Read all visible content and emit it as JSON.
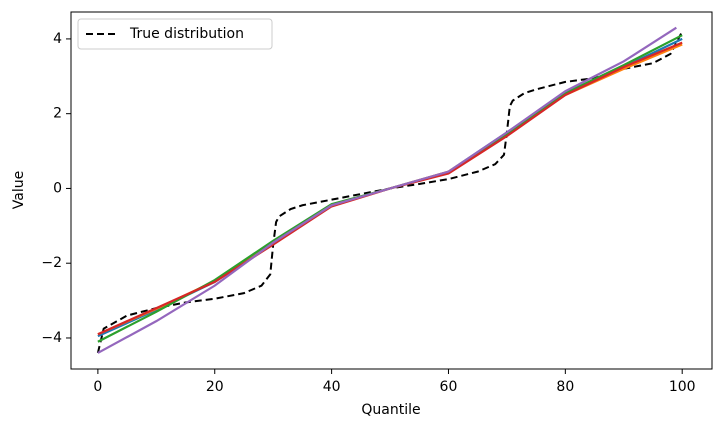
{
  "chart_data": {
    "type": "line",
    "xlabel": "Quantile",
    "ylabel": "Value",
    "xlim": [
      -4.6,
      105.1
    ],
    "xticks": [
      0,
      20,
      40,
      60,
      80,
      100
    ],
    "ylim": [
      -4.83,
      4.72
    ],
    "yticks": [
      {
        "value": -4,
        "label": "−4"
      },
      {
        "value": -2,
        "label": "−2"
      },
      0,
      2,
      4
    ],
    "legend": "upper left",
    "series": [
      {
        "name": "True distribution",
        "color": "#000000",
        "dashed": true,
        "x": [
          0,
          1,
          5,
          10,
          15,
          20,
          25,
          28,
          29.5,
          30,
          30.5,
          31,
          33,
          35,
          40,
          45,
          50,
          55,
          60,
          65,
          68,
          69.5,
          70,
          70.5,
          71,
          73,
          75,
          80,
          85,
          90,
          95,
          98,
          99,
          100
        ],
        "values": [
          -4.4,
          -3.75,
          -3.4,
          -3.2,
          -3.05,
          -2.95,
          -2.8,
          -2.6,
          -2.3,
          -1.5,
          -0.9,
          -0.75,
          -0.55,
          -0.45,
          -0.3,
          -0.15,
          0,
          0.12,
          0.25,
          0.45,
          0.65,
          0.9,
          1.5,
          2.2,
          2.35,
          2.55,
          2.65,
          2.85,
          2.95,
          3.2,
          3.35,
          3.6,
          3.9,
          4.2
        ]
      },
      {
        "color": "#1f77b4",
        "x": [
          0,
          10,
          20,
          30,
          40,
          50,
          60,
          70,
          80,
          90,
          100
        ],
        "values": [
          -3.95,
          -3.25,
          -2.5,
          -1.45,
          -0.45,
          0,
          0.45,
          1.5,
          2.55,
          3.25,
          4.0
        ]
      },
      {
        "color": "#ff7f0e",
        "x": [
          0,
          10,
          20,
          30,
          40,
          50,
          60,
          70,
          80,
          90,
          100
        ],
        "values": [
          -3.9,
          -3.22,
          -2.48,
          -1.45,
          -0.45,
          0,
          0.45,
          1.48,
          2.5,
          3.2,
          3.85
        ]
      },
      {
        "color": "#2ca02c",
        "x": [
          0,
          10,
          20,
          30,
          40,
          50,
          60,
          70,
          80,
          90,
          100
        ],
        "values": [
          -4.1,
          -3.3,
          -2.45,
          -1.4,
          -0.42,
          0,
          0.42,
          1.45,
          2.55,
          3.3,
          4.1
        ]
      },
      {
        "color": "#d62728",
        "x": [
          0,
          10,
          20,
          30,
          40,
          50,
          60,
          70,
          80,
          90,
          100
        ],
        "values": [
          -3.9,
          -3.2,
          -2.5,
          -1.5,
          -0.48,
          0,
          0.4,
          1.4,
          2.5,
          3.25,
          3.9
        ]
      },
      {
        "color": "#9467bd",
        "x": [
          0,
          10,
          20,
          30,
          40,
          50,
          60,
          70,
          80,
          90,
          99
        ],
        "values": [
          -4.4,
          -3.55,
          -2.6,
          -1.45,
          -0.45,
          0,
          0.45,
          1.5,
          2.6,
          3.4,
          4.3
        ]
      }
    ]
  }
}
